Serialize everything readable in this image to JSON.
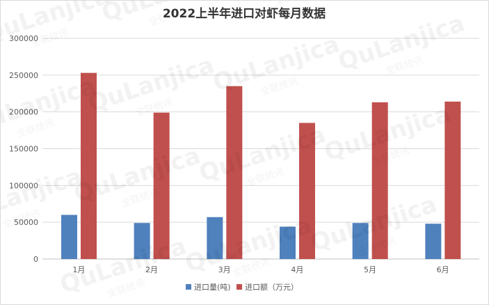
{
  "chart_data": {
    "type": "bar",
    "title": "2022上半年进口对虾每月数据",
    "xlabel": "",
    "ylabel": "",
    "categories": [
      "1月",
      "2月",
      "3月",
      "4月",
      "5月",
      "6月"
    ],
    "series": [
      {
        "name": "进口量(吨)",
        "color": "#4f81bd",
        "values": [
          60000,
          49000,
          57000,
          44000,
          49000,
          48000
        ]
      },
      {
        "name": "进口额（万元）",
        "color": "#c0504d",
        "values": [
          253000,
          199000,
          235000,
          185000,
          213000,
          214000
        ]
      }
    ],
    "ylim": [
      0,
      300000
    ],
    "yticks": [
      0,
      50000,
      100000,
      150000,
      200000,
      250000,
      300000
    ],
    "grid": true,
    "legend_position": "bottom"
  },
  "watermark": {
    "text": "QuLanjica",
    "subtext": "全联统讯"
  }
}
